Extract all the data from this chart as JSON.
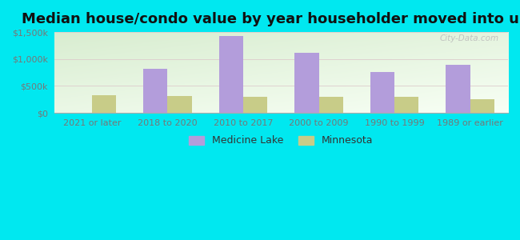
{
  "title": "Median house/condo value by year householder moved into unit",
  "categories": [
    "2021 or later",
    "2018 to 2020",
    "2010 to 2017",
    "2000 to 2009",
    "1990 to 1999",
    "1989 or earlier"
  ],
  "medicine_lake": [
    0,
    820000,
    1430000,
    1120000,
    760000,
    900000
  ],
  "minnesota": [
    330000,
    320000,
    295000,
    295000,
    305000,
    260000
  ],
  "bar_color_ml": "#b39ddb",
  "bar_color_mn": "#c8cc88",
  "ylim": [
    0,
    1500000
  ],
  "yticks": [
    0,
    500000,
    1000000,
    1500000
  ],
  "ytick_labels": [
    "$0",
    "$500k",
    "$1,000k",
    "$1,500k"
  ],
  "bg_color": "#00e8f0",
  "watermark": "City-Data.com",
  "legend_ml": "Medicine Lake",
  "legend_mn": "Minnesota",
  "title_fontsize": 13,
  "tick_fontsize": 8,
  "grid_color": "#ddcccc",
  "axis_label_color": "#777777",
  "plot_bg_colors": [
    "#d8edd8",
    "#f5fff5"
  ],
  "bar_width": 0.32
}
